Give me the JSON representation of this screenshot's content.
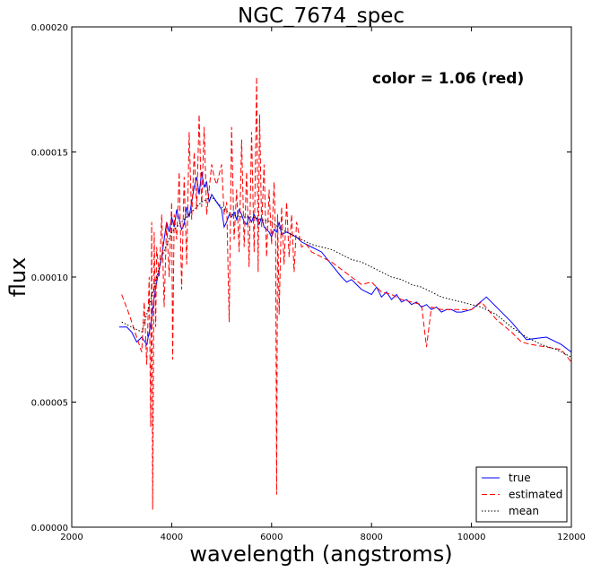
{
  "chart_data": {
    "type": "line",
    "title": "NGC_7674_spec",
    "xlabel": "wavelength (angstroms)",
    "ylabel": "flux",
    "xlim": [
      2000,
      12000
    ],
    "ylim": [
      0.0,
      0.0002
    ],
    "xticks": [
      2000,
      4000,
      6000,
      8000,
      10000,
      12000
    ],
    "xtick_labels": [
      "2000",
      "4000",
      "6000",
      "8000",
      "10000",
      "12000"
    ],
    "yticks": [
      0.0,
      5e-05,
      0.0001,
      0.00015,
      0.0002
    ],
    "ytick_labels": [
      "0.00000",
      "0.00005",
      "0.00010",
      "0.00015",
      "0.00020"
    ],
    "grid": false,
    "legend_position": "lower-right",
    "annotation": "color = 1.06 (red)",
    "series": [
      {
        "name": "true",
        "color": "#0000ff",
        "style": "solid",
        "x": [
          2950,
          3100,
          3200,
          3300,
          3400,
          3500,
          3550,
          3600,
          3650,
          3700,
          3800,
          3850,
          3900,
          3950,
          4000,
          4050,
          4100,
          4150,
          4200,
          4250,
          4300,
          4350,
          4400,
          4450,
          4500,
          4550,
          4600,
          4650,
          4700,
          4750,
          4800,
          4900,
          5000,
          5050,
          5100,
          5150,
          5200,
          5250,
          5300,
          5350,
          5400,
          5450,
          5500,
          5550,
          5600,
          5650,
          5700,
          5750,
          5800,
          5850,
          5900,
          5950,
          6000,
          6050,
          6100,
          6150,
          6200,
          6300,
          6400,
          6500,
          6600,
          6700,
          6800,
          7000,
          7200,
          7400,
          7500,
          7600,
          7700,
          7800,
          7900,
          8000,
          8100,
          8200,
          8300,
          8400,
          8500,
          8600,
          8700,
          8800,
          8900,
          9000,
          9100,
          9200,
          9300,
          9400,
          9500,
          9600,
          9700,
          9800,
          10000,
          10300,
          10800,
          11100,
          11500,
          11800,
          12000
        ],
        "y": [
          8e-05,
          8e-05,
          7.8e-05,
          7.4e-05,
          7.6e-05,
          7.3e-05,
          7.8e-05,
          8.3e-05,
          9.2e-05,
          9.8e-05,
          0.000108,
          0.000115,
          0.000122,
          0.000118,
          0.000124,
          0.00012,
          0.000127,
          0.000123,
          0.000119,
          0.000121,
          0.000128,
          0.000124,
          0.00013,
          0.000136,
          0.00014,
          0.000133,
          0.000142,
          0.000136,
          0.000138,
          0.00013,
          0.000133,
          0.00013,
          0.000127,
          0.00012,
          0.000122,
          0.000125,
          0.000124,
          0.000126,
          0.000123,
          0.000127,
          0.000125,
          0.000122,
          0.000121,
          0.000124,
          0.000122,
          0.000125,
          0.000123,
          0.000121,
          0.000124,
          0.00012,
          0.000119,
          0.000118,
          0.000116,
          0.000119,
          0.000118,
          0.000122,
          0.000117,
          0.000118,
          0.000117,
          0.000116,
          0.000114,
          0.000113,
          0.000112,
          0.00011,
          0.000105,
          0.0001,
          9.8e-05,
          9.9e-05,
          9.7e-05,
          9.5e-05,
          9.4e-05,
          9.3e-05,
          9.6e-05,
          9.2e-05,
          9.4e-05,
          9.1e-05,
          9.3e-05,
          9e-05,
          9.1e-05,
          8.9e-05,
          9e-05,
          8.8e-05,
          8.9e-05,
          8.7e-05,
          8.8e-05,
          8.6e-05,
          8.7e-05,
          8.7e-05,
          8.6e-05,
          8.6e-05,
          8.7e-05,
          9.2e-05,
          8.2e-05,
          7.5e-05,
          7.6e-05,
          7.3e-05,
          7e-05
        ]
      },
      {
        "name": "estimated",
        "color": "#ff0000",
        "style": "dashed",
        "x": [
          3000,
          3150,
          3300,
          3400,
          3450,
          3500,
          3550,
          3580,
          3600,
          3620,
          3650,
          3680,
          3700,
          3750,
          3800,
          3850,
          3900,
          3950,
          4000,
          4020,
          4050,
          4100,
          4150,
          4200,
          4250,
          4300,
          4350,
          4400,
          4450,
          4500,
          4550,
          4600,
          4650,
          4700,
          4750,
          4800,
          4850,
          4900,
          5000,
          5050,
          5100,
          5150,
          5200,
          5250,
          5300,
          5350,
          5400,
          5450,
          5500,
          5550,
          5600,
          5650,
          5700,
          5730,
          5760,
          5800,
          5850,
          5900,
          5950,
          6000,
          6050,
          6080,
          6100,
          6120,
          6150,
          6200,
          6250,
          6300,
          6350,
          6400,
          6450,
          6500,
          6600,
          6700,
          6800,
          7000,
          7200,
          7400,
          7600,
          7800,
          8000,
          8200,
          8400,
          8600,
          8800,
          9000,
          9100,
          9200,
          9400,
          9600,
          9800,
          10000,
          10200,
          10500,
          10800,
          11000,
          11200,
          11500,
          11800,
          12000
        ],
        "y": [
          9.3e-05,
          8.5e-05,
          7.6e-05,
          7e-05,
          9e-05,
          6.5e-05,
          0.0001,
          4e-05,
          0.000122,
          7e-06,
          0.000118,
          8e-05,
          0.000112,
          0.0001,
          0.000125,
          8.8e-05,
          0.000122,
          0.0001,
          0.00013,
          6.7e-05,
          0.000125,
          0.000115,
          0.000142,
          9.5e-05,
          0.00014,
          0.000105,
          0.000158,
          0.000123,
          0.00015,
          0.000127,
          0.000165,
          0.000128,
          0.00016,
          0.000125,
          0.000135,
          0.000145,
          0.00014,
          0.000137,
          0.000145,
          0.000125,
          0.00013,
          8.2e-05,
          0.00016,
          0.000115,
          0.000135,
          0.00011,
          0.000155,
          0.000112,
          0.000142,
          0.000104,
          0.000158,
          0.00011,
          0.00018,
          0.000102,
          0.000165,
          0.00012,
          0.000145,
          0.000108,
          0.000135,
          0.000113,
          0.000138,
          0.000115,
          1.3e-05,
          0.000125,
          8.5e-05,
          0.000128,
          0.000105,
          0.00013,
          0.000108,
          0.000125,
          0.000102,
          0.000122,
          0.000112,
          0.000113,
          0.00011,
          0.000108,
          0.000106,
          0.000103,
          0.0001,
          9.7e-05,
          9.8e-05,
          9.4e-05,
          9.3e-05,
          9.1e-05,
          9e-05,
          8.9e-05,
          7.2e-05,
          8.8e-05,
          8.7e-05,
          8.7e-05,
          8.7e-05,
          8.7e-05,
          9e-05,
          8.3e-05,
          7.8e-05,
          7.4e-05,
          7.3e-05,
          7.2e-05,
          7.1e-05,
          6.6e-05
        ]
      },
      {
        "name": "mean",
        "color": "#000000",
        "style": "dotted",
        "x": [
          3000,
          3200,
          3400,
          3600,
          3800,
          4000,
          4200,
          4400,
          4600,
          4800,
          5000,
          5200,
          5400,
          5600,
          5800,
          6000,
          6200,
          6400,
          6600,
          6800,
          7000,
          7200,
          7400,
          7600,
          7800,
          8000,
          8200,
          8400,
          8600,
          8800,
          9000,
          9200,
          9400,
          9600,
          9800,
          10000,
          10200,
          10500,
          10800,
          11100,
          11400,
          11700,
          12000
        ],
        "y": [
          8.2e-05,
          8e-05,
          7.8e-05,
          9.2e-05,
          0.000108,
          0.000118,
          0.000122,
          0.000126,
          0.00013,
          0.000132,
          0.000128,
          0.000125,
          0.000124,
          0.000124,
          0.000123,
          0.000122,
          0.000119,
          0.000117,
          0.000115,
          0.000113,
          0.000112,
          0.000111,
          0.000109,
          0.000107,
          0.000106,
          0.000104,
          0.000102,
          0.0001,
          9.9e-05,
          9.7e-05,
          9.6e-05,
          9.4e-05,
          9.2e-05,
          9.1e-05,
          9e-05,
          8.9e-05,
          8.8e-05,
          8.5e-05,
          8e-05,
          7.6e-05,
          7.3e-05,
          7.1e-05,
          6.8e-05
        ]
      }
    ]
  }
}
